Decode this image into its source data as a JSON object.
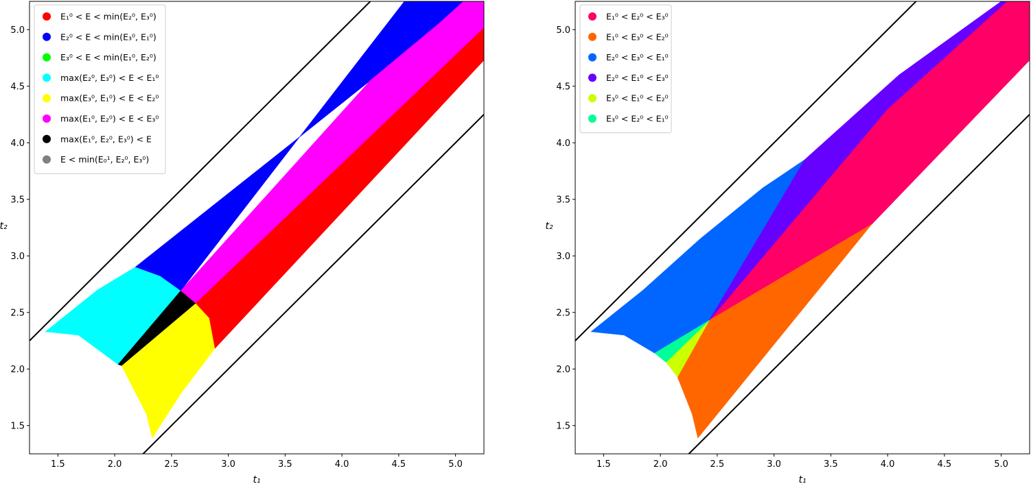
{
  "chart_data": [
    {
      "type": "area",
      "xlabel": "t₁",
      "ylabel": "t₂",
      "xlim": [
        1.25,
        5.25
      ],
      "ylim": [
        1.25,
        5.25
      ],
      "xticks": [
        "1.5",
        "2.0",
        "2.5",
        "3.0",
        "3.5",
        "4.0",
        "4.5",
        "5.0"
      ],
      "yticks": [
        "1.5",
        "2.0",
        "2.5",
        "3.0",
        "3.5",
        "4.0",
        "4.5",
        "5.0"
      ],
      "grid": false,
      "legend_position": "top-left",
      "boundary_lines": [
        {
          "name": "upper",
          "points": [
            [
              1.25,
              2.25
            ],
            [
              2.25,
              3.25
            ],
            [
              5.25,
              6.25
            ]
          ]
        },
        {
          "name": "lower",
          "points": [
            [
              2.25,
              1.25
            ],
            [
              5.25,
              4.25
            ]
          ]
        }
      ],
      "regions": [
        {
          "label": "E₁⁰ < E < min(E₂⁰, E₃⁰)",
          "color": "#ff0000",
          "polygon": [
            [
              2.88,
              2.18
            ],
            [
              5.25,
              4.73
            ],
            [
              5.25,
              5.02
            ],
            [
              2.71,
              2.58
            ],
            [
              2.83,
              2.45
            ]
          ]
        },
        {
          "label": "E₂⁰ < E < min(E₃⁰, E₁⁰)",
          "color": "#0000ff",
          "polygon": [
            [
              2.18,
              2.9
            ],
            [
              3.5,
              3.95
            ],
            [
              4.25,
              4.55
            ],
            [
              4.85,
              5.05
            ],
            [
              5.07,
              5.25
            ],
            [
              4.55,
              5.25
            ],
            [
              2.58,
              2.69
            ],
            [
              2.4,
              2.82
            ]
          ]
        },
        {
          "label": "E₃⁰ < E < min(E₁⁰, E₂⁰)",
          "color": "#00ff00",
          "polygon": []
        },
        {
          "label": "max(E₂⁰, E₃⁰) < E < E₁⁰",
          "color": "#00ffff",
          "polygon": [
            [
              1.39,
              2.33
            ],
            [
              1.68,
              2.3
            ],
            [
              2.03,
              2.04
            ],
            [
              2.58,
              2.69
            ],
            [
              2.4,
              2.82
            ],
            [
              2.18,
              2.9
            ],
            [
              1.85,
              2.7
            ]
          ]
        },
        {
          "label": "max(E₃⁰, E₁⁰) < E < E₂⁰",
          "color": "#ffff00",
          "polygon": [
            [
              2.06,
              2.03
            ],
            [
              2.71,
              2.58
            ],
            [
              2.83,
              2.45
            ],
            [
              2.88,
              2.18
            ],
            [
              2.58,
              1.78
            ],
            [
              2.33,
              1.39
            ],
            [
              2.28,
              1.6
            ]
          ]
        },
        {
          "label": "max(E₁⁰, E₂⁰) < E < E₃⁰",
          "color": "#ff00ff",
          "polygon": [
            [
              2.58,
              2.69
            ],
            [
              2.71,
              2.58
            ],
            [
              5.25,
              5.02
            ],
            [
              5.25,
              5.25
            ],
            [
              5.07,
              5.25
            ],
            [
              4.85,
              5.05
            ],
            [
              4.25,
              4.55
            ]
          ]
        },
        {
          "label": "max(E₁⁰, E₂⁰, E₃⁰) < E",
          "color": "#000000",
          "polygon": [
            [
              2.03,
              2.04
            ],
            [
              2.06,
              2.03
            ],
            [
              2.71,
              2.58
            ],
            [
              2.58,
              2.69
            ]
          ]
        },
        {
          "label": "E < min(E₀¹, E₂⁰, E₃⁰)",
          "color": "#808080",
          "polygon": []
        }
      ]
    },
    {
      "type": "area",
      "xlabel": "t₁",
      "ylabel": "t₂",
      "xlim": [
        1.25,
        5.25
      ],
      "ylim": [
        1.25,
        5.25
      ],
      "xticks": [
        "1.5",
        "2.0",
        "2.5",
        "3.0",
        "3.5",
        "4.0",
        "4.5",
        "5.0"
      ],
      "yticks": [
        "1.5",
        "2.0",
        "2.5",
        "3.0",
        "3.5",
        "4.0",
        "4.5",
        "5.0"
      ],
      "grid": false,
      "legend_position": "top-left",
      "boundary_lines": [
        {
          "name": "upper",
          "points": [
            [
              1.25,
              2.25
            ],
            [
              5.25,
              6.25
            ]
          ]
        },
        {
          "name": "lower",
          "points": [
            [
              2.25,
              1.25
            ],
            [
              5.25,
              4.25
            ]
          ]
        }
      ],
      "regions": [
        {
          "label": "E₁⁰ < E₂⁰ < E₃⁰",
          "color": "#ff0066",
          "polygon": [
            [
              2.43,
              2.43
            ],
            [
              3.86,
              3.28
            ],
            [
              5.25,
              4.73
            ],
            [
              5.25,
              5.25
            ],
            [
              5.05,
              5.25
            ],
            [
              4.0,
              4.3
            ]
          ]
        },
        {
          "label": "E₁⁰ < E₃⁰ < E₂⁰",
          "color": "#ff6600",
          "polygon": [
            [
              2.43,
              2.43
            ],
            [
              3.86,
              3.28
            ],
            [
              2.33,
              1.39
            ],
            [
              2.28,
              1.6
            ],
            [
              2.15,
              1.93
            ]
          ]
        },
        {
          "label": "E₂⁰ < E₃⁰ < E₁⁰",
          "color": "#0066ff",
          "polygon": [
            [
              1.39,
              2.33
            ],
            [
              1.68,
              2.3
            ],
            [
              1.95,
              2.14
            ],
            [
              2.43,
              2.43
            ],
            [
              3.27,
              3.85
            ],
            [
              2.9,
              3.6
            ],
            [
              2.35,
              3.15
            ],
            [
              1.85,
              2.7
            ]
          ]
        },
        {
          "label": "E₂⁰ < E₁⁰ < E₃⁰",
          "color": "#6600ff",
          "polygon": [
            [
              2.43,
              2.43
            ],
            [
              3.27,
              3.85
            ],
            [
              4.1,
              4.6
            ],
            [
              5.0,
              5.25
            ],
            [
              5.05,
              5.25
            ],
            [
              4.0,
              4.3
            ]
          ]
        },
        {
          "label": "E₃⁰ < E₁⁰ < E₂⁰",
          "color": "#ccff00",
          "polygon": [
            [
              2.43,
              2.43
            ],
            [
              2.05,
              2.06
            ],
            [
              2.15,
              1.93
            ]
          ]
        },
        {
          "label": "E₃⁰ < E₂⁰ < E₁⁰",
          "color": "#00ff99",
          "polygon": [
            [
              2.43,
              2.43
            ],
            [
              1.95,
              2.14
            ],
            [
              2.05,
              2.06
            ]
          ]
        }
      ]
    }
  ]
}
